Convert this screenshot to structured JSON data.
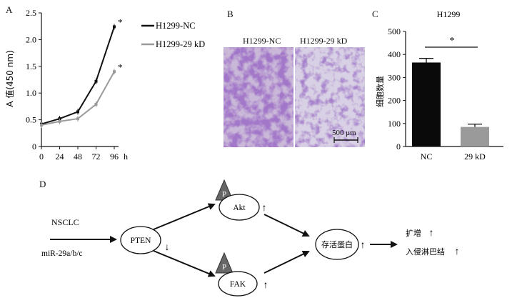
{
  "panels": {
    "a": {
      "letter": "A",
      "chart_data": {
        "type": "line",
        "ylabel": "A 值(450 nm)",
        "xlabel": "h",
        "x": [
          0,
          24,
          48,
          72,
          96
        ],
        "x_ticks": [
          "0",
          "24",
          "48",
          "72",
          "96"
        ],
        "y_ticks": [
          "0",
          "0.5",
          "1.0",
          "1.5",
          "2.0",
          "2.5"
        ],
        "ylim": [
          0,
          2.5
        ],
        "series": [
          {
            "name": "H1299-NC",
            "values": [
              0.42,
              0.52,
              0.65,
              1.22,
              2.24
            ],
            "color": "#111111",
            "annotation": "*"
          },
          {
            "name": "H1299-29 kD",
            "values": [
              0.4,
              0.47,
              0.52,
              0.79,
              1.4
            ],
            "color": "#9a9a9a",
            "annotation": "*"
          }
        ],
        "grid": false,
        "legend_position": "top-right"
      }
    },
    "b": {
      "letter": "B",
      "labels": [
        "H1299-NC",
        "H1299-29 kD"
      ],
      "scale_bar": "500 μm"
    },
    "c": {
      "letter": "C",
      "chart_data": {
        "type": "bar",
        "title": "H1299",
        "ylabel": "细胞数量",
        "categories": [
          "NC",
          "29 kD"
        ],
        "values": [
          365,
          85
        ],
        "errors": [
          18,
          12
        ],
        "colors": [
          "#0a0a0a",
          "#9a9a9a"
        ],
        "y_ticks": [
          "0",
          "100",
          "200",
          "300",
          "400",
          "500"
        ],
        "ylim": [
          0,
          500
        ],
        "significance": "*"
      }
    },
    "d": {
      "letter": "D",
      "inputs": [
        "NSCLC",
        "miR-29a/b/c"
      ],
      "pten": "PTEN",
      "akt": "Akt",
      "fak": "FAK",
      "phospho": "P",
      "survivin": "存活蛋白",
      "outcomes": [
        "扩增",
        "入侵淋巴结"
      ]
    }
  }
}
